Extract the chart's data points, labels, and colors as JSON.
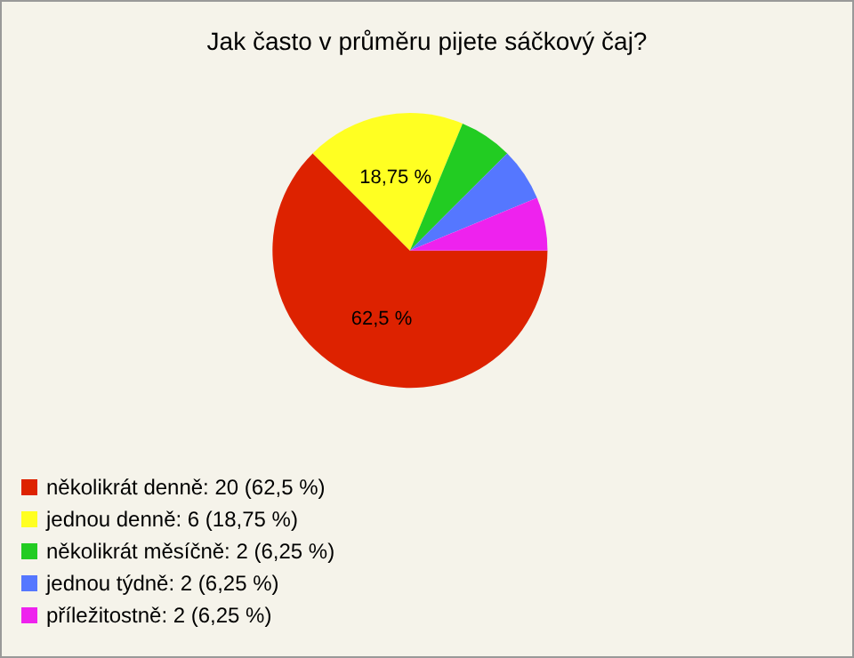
{
  "chart_data": {
    "type": "pie",
    "title": "Jak často v průměru pijete sáčkový čaj?",
    "categories": [
      "několikrát denně: 20 (62,5 %)",
      "jednou denně: 6 (18,75 %)",
      "několikrát měsíčně: 2 (6,25 %)",
      "jednou týdně: 2 (6,25 %)",
      "příležitostně: 2 (6,25 %)"
    ],
    "values": [
      62.5,
      18.75,
      6.25,
      6.25,
      6.25
    ],
    "colors": [
      "#dd2200",
      "#ffff22",
      "#22cc22",
      "#5577ff",
      "#ee22ee"
    ],
    "value_labels": [
      "62,5 %",
      "18,75 %",
      null,
      null,
      null
    ],
    "legend": "bottom left"
  }
}
